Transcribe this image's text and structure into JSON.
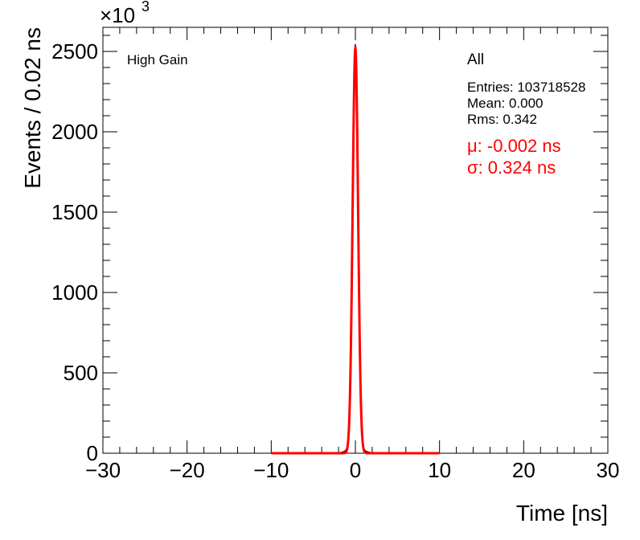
{
  "chart_data": {
    "type": "line",
    "xlabel": "Time [ns]",
    "ylabel": "Events / 0.02 ns",
    "y_multiplier": "×10",
    "y_multiplier_exp": "3",
    "xlim": [
      -30,
      30
    ],
    "ylim": [
      0,
      2650
    ],
    "x_ticks": [
      -30,
      -20,
      -10,
      0,
      10,
      20,
      30
    ],
    "x_tick_labels": [
      "−30",
      "−20",
      "−10",
      "0",
      "10",
      "20",
      "30"
    ],
    "y_ticks": [
      0,
      500,
      1000,
      1500,
      2000,
      2500
    ],
    "y_tick_labels": [
      "0",
      "500",
      "1000",
      "1500",
      "2000",
      "2500"
    ],
    "grid": false,
    "annotation_left": "High Gain",
    "stats": {
      "title": "All",
      "entries": "Entries: 103718528",
      "mean": "Mean: 0.000",
      "rms": "Rms: 0.342"
    },
    "fit": {
      "mu_label": "μ: -0.002 ns",
      "sigma_label": "σ: 0.324 ns",
      "mu": -0.002,
      "sigma": 0.324,
      "amplitude": 2520,
      "range": [
        -10,
        10
      ],
      "color": "#ff0000"
    },
    "series": [
      {
        "values_note": "histogram approximated by gaussian with slight tails",
        "color": "#000000"
      }
    ]
  }
}
